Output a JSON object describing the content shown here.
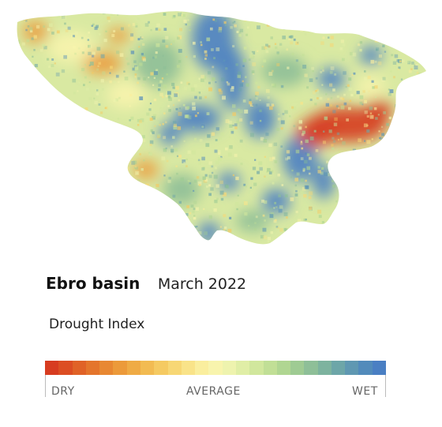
{
  "map": {
    "region": "Ebro basin",
    "date": "March 2022",
    "index_name": "Drought Index"
  },
  "legend": {
    "labels": {
      "dry": "DRY",
      "average": "AVERAGE",
      "wet": "WET"
    },
    "colors": [
      "#d73c20",
      "#dc4e23",
      "#e06227",
      "#e4752c",
      "#e88832",
      "#ec9a3a",
      "#efab45",
      "#f2bb52",
      "#f5ca62",
      "#f7d775",
      "#f9e389",
      "#faee9e",
      "#f8f4ad",
      "#eef3ae",
      "#e0eea6",
      "#d1e79d",
      "#c1df96",
      "#b0d692",
      "#9fcb93",
      "#8ebf98",
      "#7db39f",
      "#6da6a8",
      "#5f98b2",
      "#528bbb",
      "#4a7fc3"
    ]
  },
  "colors": {
    "dry": "#d73c20",
    "average": "#f8f4ad",
    "wet": "#4a7fc3",
    "moderate_dry": "#ec9a3a",
    "moderate_wet": "#8ebf98"
  }
}
